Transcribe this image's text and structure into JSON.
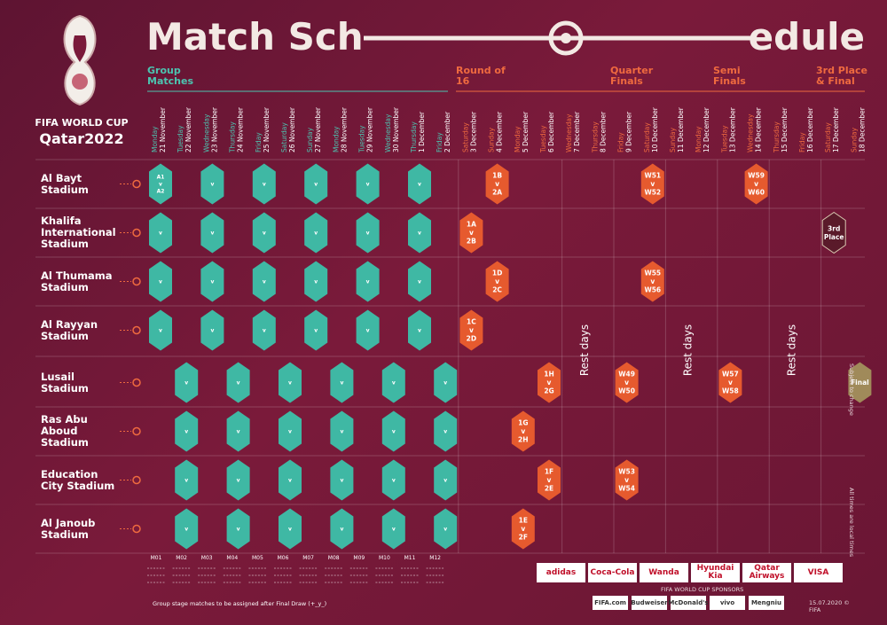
{
  "header": {
    "title_left": "Match Sch",
    "title_right": "edule",
    "logo_line1": "FIFA WORLD CUP",
    "logo_line2": "Qatar2022"
  },
  "stages": [
    "Group Matches",
    "Round of 16",
    "Quarter Finals",
    "Semi Finals",
    "3rd Place & Final"
  ],
  "dates": [
    {
      "weekday": "Monday",
      "date": "21 November"
    },
    {
      "weekday": "Tuesday",
      "date": "22 November"
    },
    {
      "weekday": "Wednesday",
      "date": "23 November"
    },
    {
      "weekday": "Thursday",
      "date": "24 November"
    },
    {
      "weekday": "Friday",
      "date": "25 November"
    },
    {
      "weekday": "Saturday",
      "date": "26 November"
    },
    {
      "weekday": "Sunday",
      "date": "27 November"
    },
    {
      "weekday": "Monday",
      "date": "28 November"
    },
    {
      "weekday": "Tuesday",
      "date": "29 November"
    },
    {
      "weekday": "Wednesday",
      "date": "30 November"
    },
    {
      "weekday": "Thursday",
      "date": "1 December"
    },
    {
      "weekday": "Friday",
      "date": "2 December"
    },
    {
      "weekday": "Saturday",
      "date": "3 December"
    },
    {
      "weekday": "Sunday",
      "date": "4 December"
    },
    {
      "weekday": "Monday",
      "date": "5 December"
    },
    {
      "weekday": "Tuesday",
      "date": "6 December"
    },
    {
      "weekday": "Wednesday",
      "date": "7 December"
    },
    {
      "weekday": "Thursday",
      "date": "8 December"
    },
    {
      "weekday": "Friday",
      "date": "9 December"
    },
    {
      "weekday": "Saturday",
      "date": "10 December"
    },
    {
      "weekday": "Sunday",
      "date": "11 December"
    },
    {
      "weekday": "Monday",
      "date": "12 December"
    },
    {
      "weekday": "Tuesday",
      "date": "13 December"
    },
    {
      "weekday": "Wednesday",
      "date": "14 December"
    },
    {
      "weekday": "Thursday",
      "date": "15 December"
    },
    {
      "weekday": "Friday",
      "date": "16 December"
    },
    {
      "weekday": "Saturday",
      "date": "17 December"
    },
    {
      "weekday": "Sunday",
      "date": "18 December"
    }
  ],
  "stadiums": [
    {
      "name": "Al Bayt Stadium",
      "cells": [
        "A1 v A2",
        null,
        "v",
        null,
        "v",
        null,
        "v",
        null,
        "v",
        null,
        "v",
        null,
        null,
        "1B v 2A",
        null,
        null,
        null,
        null,
        null,
        "W51 v W52",
        null,
        null,
        null,
        "W59 v W60",
        null,
        null,
        null,
        null
      ]
    },
    {
      "name": "Khalifa International Stadium",
      "cells": [
        "v",
        null,
        "v",
        null,
        "v",
        null,
        "v",
        null,
        "v",
        null,
        "v",
        null,
        "1A v 2B",
        null,
        null,
        null,
        null,
        null,
        null,
        null,
        null,
        null,
        null,
        null,
        null,
        null,
        "3rd Place",
        null
      ]
    },
    {
      "name": "Al Thumama Stadium",
      "cells": [
        "v",
        null,
        "v",
        null,
        "v",
        null,
        "v",
        null,
        "v",
        null,
        "v",
        null,
        null,
        "1D v 2C",
        null,
        null,
        null,
        null,
        null,
        "W55 v W56",
        null,
        null,
        null,
        null,
        null,
        null,
        null,
        null
      ]
    },
    {
      "name": "Al Rayyan Stadium",
      "cells": [
        "v",
        null,
        "v",
        null,
        "v",
        null,
        "v",
        null,
        "v",
        null,
        "v",
        null,
        "1C v 2D",
        null,
        null,
        null,
        null,
        null,
        null,
        null,
        null,
        null,
        null,
        null,
        null,
        null,
        null,
        null
      ]
    },
    {
      "name": "Lusail Stadium",
      "cells": [
        null,
        "v",
        null,
        "v",
        null,
        "v",
        null,
        "v",
        null,
        "v",
        null,
        "v",
        null,
        null,
        null,
        "1H v 2G",
        null,
        null,
        "W49 v W50",
        null,
        null,
        null,
        "W57 v W58",
        null,
        null,
        null,
        null,
        "Final"
      ]
    },
    {
      "name": "Ras Abu Aboud Stadium",
      "cells": [
        null,
        "v",
        null,
        "v",
        null,
        "v",
        null,
        "v",
        null,
        "v",
        null,
        "v",
        null,
        null,
        "1G v 2H",
        null,
        null,
        null,
        null,
        null,
        null,
        null,
        null,
        null,
        null,
        null,
        null,
        null
      ]
    },
    {
      "name": "Education City Stadium",
      "cells": [
        null,
        "v",
        null,
        "v",
        null,
        "v",
        null,
        "v",
        null,
        "v",
        null,
        "v",
        null,
        null,
        null,
        "1F v 2E",
        null,
        null,
        "W53 v W54",
        null,
        null,
        null,
        null,
        null,
        null,
        null,
        null,
        null
      ]
    },
    {
      "name": "Al Janoub Stadium",
      "cells": [
        null,
        "v",
        null,
        "v",
        null,
        "v",
        null,
        "v",
        null,
        "v",
        null,
        "v",
        null,
        null,
        "1E v 2F",
        null,
        null,
        null,
        null,
        null,
        null,
        null,
        null,
        null,
        null,
        null,
        null,
        null
      ]
    }
  ],
  "rest_days": [
    "Rest days",
    "Rest days",
    "Rest days"
  ],
  "footer": {
    "match_codes": [
      "M01",
      "M02",
      "M03",
      "M04",
      "M05",
      "M06",
      "M07",
      "M08",
      "M09",
      "M10",
      "M11",
      "M12"
    ],
    "note": "Group stage matches to be assigned after Final Draw (+_y_)",
    "sponsors": [
      "adidas",
      "Coca-Cola",
      "Wanda",
      "Hyundai Kia",
      "Qatar Airways",
      "VISA"
    ],
    "sponsors_heading": "FIFA WORLD CUP SPONSORS",
    "sponsors2": [
      "FIFA.com",
      "Budweiser",
      "McDonald's",
      "vivo",
      "Mengniu"
    ],
    "side_notes": [
      "Subject to change",
      "All times are local times"
    ],
    "stamp": "15.07.2020 © FIFA"
  }
}
